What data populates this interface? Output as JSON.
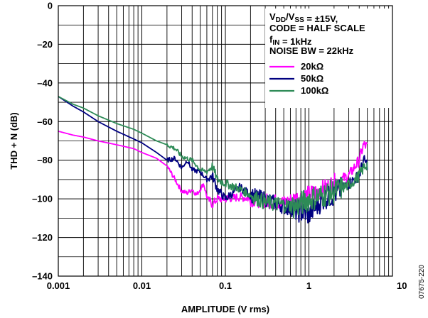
{
  "chart_data": {
    "type": "line",
    "title": "",
    "xlabel": "AMPLITUDE (V rms)",
    "ylabel": "THD + N (dB)",
    "x_scale": "log",
    "xlim": [
      0.001,
      10
    ],
    "ylim": [
      -140,
      0
    ],
    "x_ticks": [
      0.001,
      0.01,
      0.1,
      1,
      10
    ],
    "x_tick_labels": [
      "0.001",
      "0.01",
      "0.1",
      "1",
      "10"
    ],
    "y_ticks": [
      0,
      -20,
      -40,
      -60,
      -80,
      -100,
      -120,
      -140
    ],
    "y_tick_labels": [
      "0",
      "–20",
      "–40",
      "–60",
      "–80",
      "–100",
      "–120",
      "–140"
    ],
    "grid": true,
    "legend_position": "top-right",
    "conditions": [
      {
        "main": "V",
        "sub1": "DD",
        "mid": "/V",
        "sub2": "SS",
        "rest": " = ±15V,"
      },
      {
        "main": "CODE = HALF SCALE"
      },
      {
        "main": "f",
        "sub1": "IN",
        "rest": " = 1kHz"
      },
      {
        "main": "NOISE BW = 22kHz"
      }
    ],
    "series": [
      {
        "name": "20kΩ",
        "color": "#ff00ff",
        "x": [
          0.001,
          0.0015,
          0.002,
          0.003,
          0.005,
          0.008,
          0.01,
          0.015,
          0.02,
          0.025,
          0.03,
          0.035,
          0.04,
          0.045,
          0.05,
          0.055,
          0.06,
          0.07,
          0.08,
          0.1,
          0.15,
          0.2,
          0.3,
          0.5,
          0.7,
          1,
          1.5,
          2,
          3,
          4,
          4.5,
          5
        ],
        "y": [
          -65,
          -67,
          -68,
          -70,
          -72,
          -74,
          -76,
          -79,
          -83,
          -90,
          -96,
          -97,
          -95,
          -98,
          -95,
          -92,
          -99,
          -103,
          -100,
          -100,
          -99,
          -100,
          -101,
          -102,
          -100,
          -98,
          -95,
          -92,
          -88,
          -80,
          -72,
          -73
        ]
      },
      {
        "name": "50kΩ",
        "color": "#000080",
        "x": [
          0.001,
          0.0015,
          0.002,
          0.003,
          0.005,
          0.008,
          0.01,
          0.015,
          0.02,
          0.025,
          0.03,
          0.035,
          0.04,
          0.05,
          0.06,
          0.07,
          0.08,
          0.1,
          0.15,
          0.2,
          0.3,
          0.5,
          0.7,
          1,
          1.5,
          2,
          3,
          4,
          4.5,
          5
        ],
        "y": [
          -47,
          -52,
          -55,
          -60,
          -65,
          -69,
          -71,
          -76,
          -80,
          -79,
          -84,
          -80,
          -85,
          -86,
          -90,
          -88,
          -95,
          -100,
          -94,
          -98,
          -100,
          -104,
          -106,
          -108,
          -100,
          -98,
          -92,
          -88,
          -80,
          -82
        ]
      },
      {
        "name": "100kΩ",
        "color": "#2e8b57",
        "x": [
          0.001,
          0.0015,
          0.002,
          0.003,
          0.005,
          0.008,
          0.01,
          0.015,
          0.02,
          0.025,
          0.03,
          0.04,
          0.05,
          0.06,
          0.07,
          0.08,
          0.1,
          0.15,
          0.2,
          0.3,
          0.5,
          0.7,
          1,
          1.5,
          2,
          3,
          4,
          4.5,
          5
        ],
        "y": [
          -47,
          -51,
          -53,
          -57,
          -61,
          -64,
          -66,
          -70,
          -72,
          -74,
          -78,
          -80,
          -85,
          -86,
          -83,
          -90,
          -92,
          -95,
          -98,
          -102,
          -103,
          -104,
          -100,
          -98,
          -96,
          -93,
          -88,
          -84,
          -82
        ]
      }
    ],
    "side_code": "07675-220"
  }
}
